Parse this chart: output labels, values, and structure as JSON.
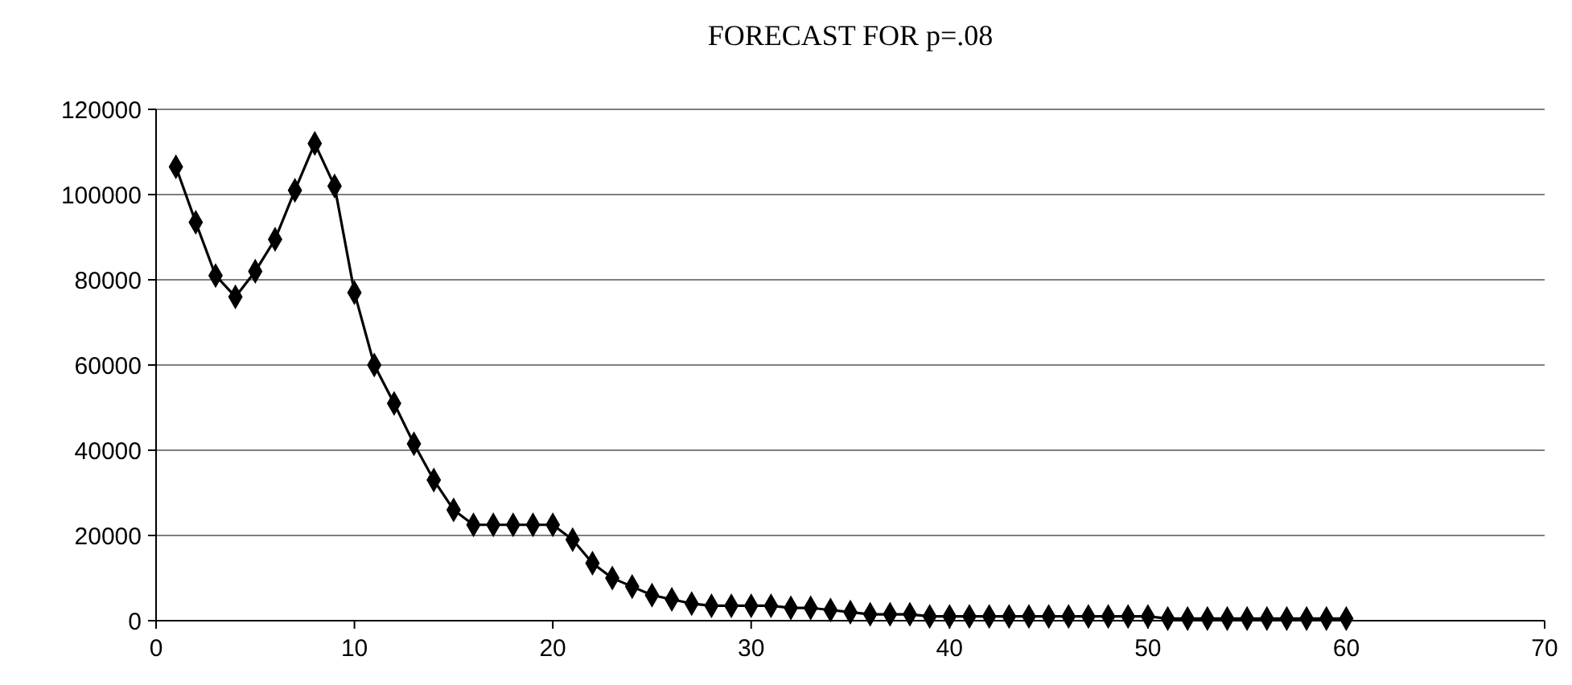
{
  "chart_data": {
    "type": "line",
    "title": "FORECAST FOR p=.08",
    "marker": "diamond",
    "grid": "y",
    "x": [
      1,
      2,
      3,
      4,
      5,
      6,
      7,
      8,
      9,
      10,
      11,
      12,
      13,
      14,
      15,
      16,
      17,
      18,
      19,
      20,
      21,
      22,
      23,
      24,
      25,
      26,
      27,
      28,
      29,
      30,
      31,
      32,
      33,
      34,
      35,
      36,
      37,
      38,
      39,
      40,
      41,
      42,
      43,
      44,
      45,
      46,
      47,
      48,
      49,
      50,
      51,
      52,
      53,
      54,
      55,
      56,
      57,
      58,
      59,
      60
    ],
    "series": [
      {
        "color": "#000000",
        "values": [
          106500,
          93500,
          81000,
          76000,
          82000,
          89500,
          101000,
          112000,
          102000,
          77000,
          60000,
          51000,
          41500,
          33000,
          26000,
          22500,
          22500,
          22500,
          22500,
          22500,
          19000,
          13500,
          10000,
          8000,
          6000,
          5000,
          4000,
          3500,
          3500,
          3500,
          3500,
          3000,
          3000,
          2500,
          2000,
          1500,
          1500,
          1500,
          1000,
          1000,
          1000,
          1000,
          1000,
          1000,
          1000,
          1000,
          1000,
          1000,
          1000,
          1000,
          500,
          500,
          500,
          500,
          500,
          500,
          500,
          500,
          500,
          500
        ]
      }
    ],
    "xlim": [
      0,
      70
    ],
    "xticks": [
      0,
      10,
      20,
      30,
      40,
      50,
      60,
      70
    ],
    "ylim": [
      0,
      120000
    ],
    "yticks": [
      0,
      20000,
      40000,
      60000,
      80000,
      100000,
      120000
    ]
  }
}
